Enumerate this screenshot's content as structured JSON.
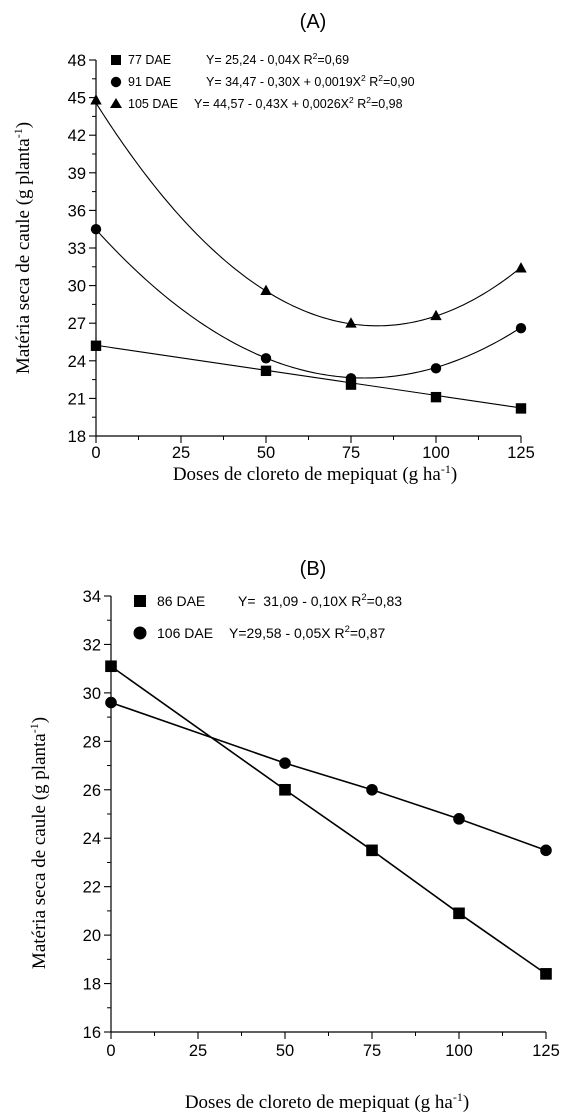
{
  "chart_data": [
    {
      "type": "scatter",
      "title": "(A)",
      "xlabel": "Doses de cloreto de mepiquat (g ha",
      "xlabel_sup": "-1",
      "xlabel_end": ")",
      "ylabel": "Matéria seca de caule (g planta",
      "ylabel_sup": "-1",
      "ylabel_end": ")",
      "xlim": [
        0,
        125
      ],
      "ylim": [
        18,
        48
      ],
      "xticks": [
        0,
        25,
        50,
        75,
        100,
        125
      ],
      "yticks": [
        18,
        21,
        24,
        27,
        30,
        33,
        36,
        39,
        42,
        45,
        48
      ],
      "grid": false,
      "legend_position": "top-left",
      "series": [
        {
          "legend_label": "77 DAE",
          "equation": "Y= 25,24 - 0,04X R",
          "eq_sup": "2",
          "eq_end": "=0,69",
          "marker": "square",
          "fit": [
            25.24,
            -0.04,
            0
          ],
          "x": [
            0,
            50,
            75,
            100,
            125
          ],
          "y": [
            25.2,
            23.2,
            22.1,
            21.1,
            20.2
          ]
        },
        {
          "legend_label": "91 DAE",
          "equation": "Y= 34,47 - 0,30X + 0,0019X",
          "eq_sup1": "2",
          "eq_mid": " R",
          "eq_sup": "2",
          "eq_end": "=0,90",
          "marker": "circle",
          "fit": [
            34.47,
            -0.3,
            0.0019
          ],
          "x": [
            0,
            50,
            75,
            100,
            125
          ],
          "y": [
            34.5,
            24.2,
            22.6,
            23.4,
            26.6
          ]
        },
        {
          "legend_label": "105 DAE",
          "equation": "Y= 44,57 - 0,43X + 0,0026X",
          "eq_sup1": "2",
          "eq_mid": " R",
          "eq_sup": "2",
          "eq_end": "=0,98",
          "marker": "triangle",
          "fit": [
            44.57,
            -0.43,
            0.0026
          ],
          "x": [
            0,
            50,
            75,
            100,
            125
          ],
          "y": [
            44.8,
            29.6,
            27.0,
            27.6,
            31.4
          ]
        }
      ]
    },
    {
      "type": "line",
      "title": "(B)",
      "xlabel": "Doses de cloreto de mepiquat (g ha",
      "xlabel_sup": "-1",
      "xlabel_end": ")",
      "ylabel": "Matéria seca de caule (g planta",
      "ylabel_sup": "-1",
      "ylabel_end": ")",
      "xlim": [
        0,
        125
      ],
      "ylim": [
        16,
        34
      ],
      "xticks": [
        0,
        25,
        50,
        75,
        100,
        125
      ],
      "yticks": [
        16,
        18,
        20,
        22,
        24,
        26,
        28,
        30,
        32,
        34
      ],
      "grid": false,
      "legend_position": "top-left",
      "series": [
        {
          "legend_label": "86 DAE",
          "equation": "Y=  31,09 - 0,10X R",
          "eq_sup": "2",
          "eq_end": "=0,83",
          "marker": "square",
          "x": [
            0,
            50,
            75,
            100,
            125
          ],
          "y": [
            31.1,
            26.0,
            23.5,
            20.9,
            18.4
          ]
        },
        {
          "legend_label": "106 DAE",
          "equation": "Y=29,58 - 0,05X R",
          "eq_sup": "2",
          "eq_end": "=0,87",
          "marker": "circle",
          "x": [
            0,
            50,
            75,
            100,
            125
          ],
          "y": [
            29.6,
            27.1,
            26.0,
            24.8,
            23.5
          ]
        }
      ]
    }
  ]
}
